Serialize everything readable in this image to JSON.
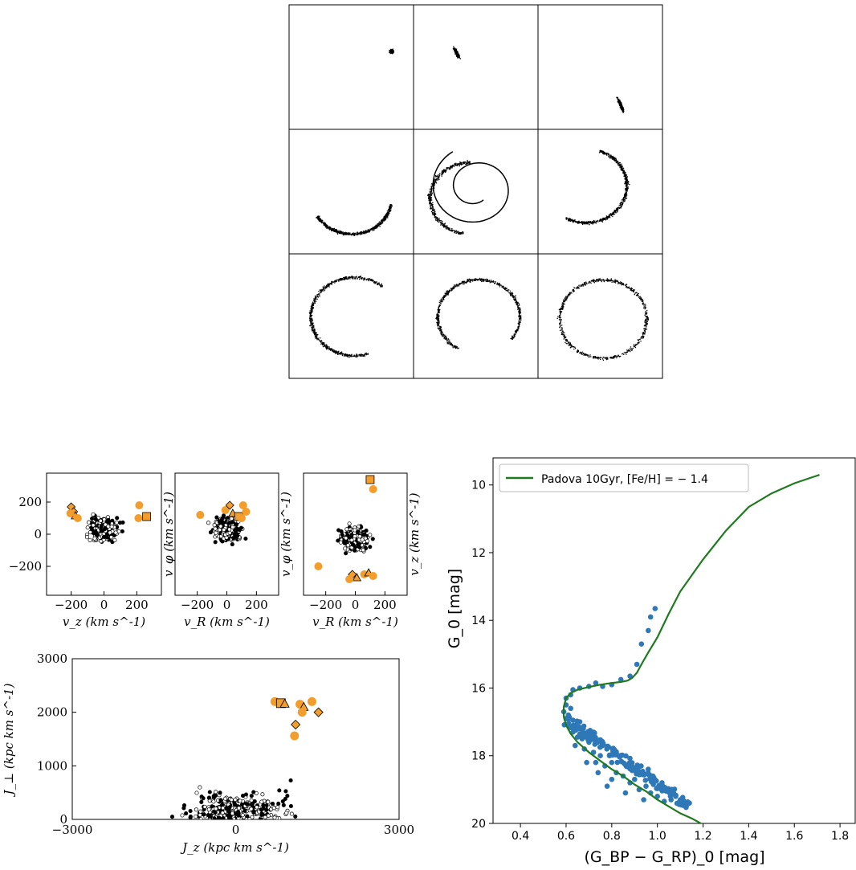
{
  "colors": {
    "orange": "#f29d2c",
    "blue": "#2e78b8",
    "green": "#1f7a1f",
    "ink": "#000000"
  },
  "chart_data": [
    {
      "type": "scatter",
      "panel": "simulation-grid",
      "rows": 3,
      "cols": 3,
      "snapshots": [
        {
          "shape": "blob",
          "cx": 0.82,
          "cy": 0.37,
          "spread": 0.03
        },
        {
          "shape": "streak",
          "cx": 0.34,
          "cy": 0.38,
          "spread": 0.08
        },
        {
          "shape": "streak",
          "cx": 0.66,
          "cy": 0.8,
          "spread": 0.1
        },
        {
          "shape": "arc",
          "cx": 0.5,
          "cy": 0.55,
          "r": 0.32,
          "a0": 150,
          "a1": 10
        },
        {
          "shape": "spiral",
          "cx": 0.45,
          "cy": 0.55,
          "r": 0.32
        },
        {
          "shape": "arc",
          "cx": 0.38,
          "cy": 0.45,
          "r": 0.33,
          "a0": -70,
          "a1": 120
        },
        {
          "shape": "arc",
          "cx": 0.52,
          "cy": 0.5,
          "r": 0.35,
          "a0": 70,
          "a1": 310
        },
        {
          "shape": "arc",
          "cx": 0.52,
          "cy": 0.5,
          "r": 0.33,
          "a0": 120,
          "a1": 400
        },
        {
          "shape": "ring",
          "cx": 0.52,
          "cy": 0.52,
          "r": 0.35
        }
      ]
    },
    {
      "type": "scatter",
      "panel": "velocity-1",
      "xlabel": "v_z (km s^-1)",
      "ylabel": "v_φ (km s^-1)",
      "xticks": [
        "−200",
        "0",
        "200"
      ],
      "yticks": [
        "200",
        "0",
        "−200"
      ],
      "xlim": [
        -350,
        350
      ],
      "ylim": [
        -380,
        380
      ],
      "highlight": [
        {
          "x": -200,
          "y": 170,
          "m": "diamond"
        },
        {
          "x": -185,
          "y": 140,
          "m": "diamond"
        },
        {
          "x": -175,
          "y": 115,
          "m": "triangle"
        },
        {
          "x": -160,
          "y": 100,
          "m": "circle"
        },
        {
          "x": -205,
          "y": 130,
          "m": "circle"
        },
        {
          "x": 215,
          "y": 180,
          "m": "circle"
        },
        {
          "x": 210,
          "y": 100,
          "m": "circle"
        },
        {
          "x": 260,
          "y": 110,
          "m": "square"
        }
      ]
    },
    {
      "type": "scatter",
      "panel": "velocity-2",
      "xlabel": "v_R (km s^-1)",
      "ylabel": "v_φ (km s^-1)",
      "xticks": [
        "−200",
        "0",
        "200"
      ],
      "xlim": [
        -350,
        350
      ],
      "ylim": [
        -380,
        380
      ],
      "highlight": [
        {
          "x": -180,
          "y": 120,
          "m": "circle"
        },
        {
          "x": -10,
          "y": 150,
          "m": "circle"
        },
        {
          "x": 20,
          "y": 180,
          "m": "diamond"
        },
        {
          "x": 40,
          "y": 130,
          "m": "triangle"
        },
        {
          "x": 80,
          "y": 110,
          "m": "square"
        },
        {
          "x": 110,
          "y": 180,
          "m": "circle"
        },
        {
          "x": 100,
          "y": 100,
          "m": "circle"
        },
        {
          "x": 130,
          "y": 140,
          "m": "circle"
        }
      ]
    },
    {
      "type": "scatter",
      "panel": "velocity-3",
      "xlabel": "v_R (km s^-1)",
      "ylabel": "v_z (km s^-1)",
      "xticks": [
        "−200",
        "0",
        "200"
      ],
      "xlim": [
        -350,
        350
      ],
      "ylim": [
        -380,
        380
      ],
      "highlight": [
        {
          "x": 100,
          "y": 340,
          "m": "square"
        },
        {
          "x": 120,
          "y": 280,
          "m": "circle"
        },
        {
          "x": -250,
          "y": -200,
          "m": "circle"
        },
        {
          "x": -20,
          "y": -250,
          "m": "diamond"
        },
        {
          "x": 10,
          "y": -270,
          "m": "triangle"
        },
        {
          "x": 60,
          "y": -250,
          "m": "circle"
        },
        {
          "x": 90,
          "y": -240,
          "m": "triangle"
        },
        {
          "x": 120,
          "y": -260,
          "m": "circle"
        },
        {
          "x": -40,
          "y": -280,
          "m": "circle"
        }
      ]
    },
    {
      "type": "scatter",
      "panel": "actions",
      "xlabel": "J_z (kpc km s^-1)",
      "ylabel": "J_⊥ (kpc km s^-1)",
      "xticks": [
        "−3000",
        "0",
        "3000"
      ],
      "yticks": [
        "3000",
        "2000",
        "1000",
        "0"
      ],
      "xlim": [
        -3000,
        3000
      ],
      "ylim": [
        0,
        3000
      ],
      "highlight": [
        {
          "x": 720,
          "y": 2200,
          "m": "circle"
        },
        {
          "x": 830,
          "y": 2170,
          "m": "square"
        },
        {
          "x": 900,
          "y": 2160,
          "m": "triangle"
        },
        {
          "x": 1180,
          "y": 2150,
          "m": "circle"
        },
        {
          "x": 1250,
          "y": 2100,
          "m": "triangle"
        },
        {
          "x": 1220,
          "y": 2000,
          "m": "circle"
        },
        {
          "x": 1400,
          "y": 2200,
          "m": "circle"
        },
        {
          "x": 1520,
          "y": 2000,
          "m": "diamond"
        },
        {
          "x": 1100,
          "y": 1770,
          "m": "diamond"
        },
        {
          "x": 1080,
          "y": 1560,
          "m": "circle"
        }
      ]
    },
    {
      "type": "line",
      "panel": "cmd",
      "xlabel": "(G_BP − G_RP)_0 [mag]",
      "ylabel": "G_0 [mag]",
      "legend": "Padova 10Gyr,  [Fe/H] = − 1.4",
      "legend_position": "top-left",
      "xlim": [
        0.28,
        1.87
      ],
      "ylim": [
        20,
        9.2
      ],
      "xticks": [
        "0.4",
        "0.6",
        "0.8",
        "1.0",
        "1.2",
        "1.4",
        "1.6",
        "1.8"
      ],
      "yticks": [
        "10",
        "12",
        "14",
        "16",
        "18",
        "20"
      ],
      "isochrone": {
        "x": [
          1.71,
          1.6,
          1.5,
          1.4,
          1.3,
          1.2,
          1.1,
          1.05,
          1.0,
          0.96,
          0.93,
          0.91,
          0.89,
          0.87,
          0.84,
          0.8,
          0.75,
          0.7,
          0.65,
          0.62,
          0.6,
          0.59,
          0.59,
          0.6,
          0.62,
          0.65,
          0.7,
          0.75,
          0.8,
          0.85,
          0.9,
          0.95,
          1.0,
          1.05,
          1.1,
          1.15,
          1.19
        ],
        "y": [
          9.7,
          9.95,
          10.25,
          10.65,
          11.35,
          12.2,
          13.15,
          13.8,
          14.5,
          14.95,
          15.3,
          15.55,
          15.7,
          15.78,
          15.82,
          15.85,
          15.9,
          15.97,
          16.05,
          16.15,
          16.3,
          16.55,
          16.85,
          17.1,
          17.35,
          17.6,
          17.9,
          18.15,
          18.4,
          18.6,
          18.85,
          19.05,
          19.3,
          19.5,
          19.7,
          19.85,
          20.0
        ]
      },
      "stars": [
        [
          0.99,
          13.65
        ],
        [
          0.97,
          13.9
        ],
        [
          0.96,
          14.3
        ],
        [
          0.93,
          14.7
        ],
        [
          0.91,
          15.3
        ],
        [
          0.88,
          15.65
        ],
        [
          0.84,
          15.75
        ],
        [
          0.8,
          15.9
        ],
        [
          0.76,
          15.95
        ],
        [
          0.73,
          15.85
        ],
        [
          0.7,
          15.95
        ],
        [
          0.66,
          16.0
        ],
        [
          0.63,
          16.05
        ],
        [
          0.62,
          16.2
        ],
        [
          0.6,
          16.3
        ],
        [
          0.6,
          16.5
        ],
        [
          0.59,
          16.7
        ],
        [
          0.6,
          16.9
        ],
        [
          0.62,
          16.6
        ],
        [
          0.61,
          17.1
        ],
        [
          0.63,
          17.3
        ],
        [
          0.65,
          17.2
        ],
        [
          0.67,
          17.5
        ],
        [
          0.7,
          17.6
        ],
        [
          0.68,
          17.8
        ],
        [
          0.72,
          17.9
        ],
        [
          0.75,
          18.0
        ],
        [
          0.73,
          18.2
        ],
        [
          0.77,
          18.3
        ],
        [
          0.8,
          18.2
        ],
        [
          0.82,
          18.5
        ],
        [
          0.85,
          18.6
        ],
        [
          0.8,
          18.7
        ],
        [
          0.88,
          18.8
        ],
        [
          0.9,
          18.7
        ],
        [
          0.92,
          19.0
        ],
        [
          0.95,
          18.9
        ],
        [
          0.97,
          19.1
        ],
        [
          1.0,
          19.2
        ],
        [
          0.94,
          19.3
        ],
        [
          1.03,
          19.35
        ],
        [
          1.06,
          19.3
        ],
        [
          1.1,
          19.4
        ],
        [
          1.14,
          19.4
        ],
        [
          0.86,
          19.1
        ],
        [
          0.78,
          18.9
        ],
        [
          0.98,
          18.6
        ],
        [
          1.02,
          18.8
        ],
        [
          0.66,
          17.0
        ],
        [
          0.64,
          17.7
        ],
        [
          0.71,
          17.3
        ],
        [
          0.76,
          17.7
        ],
        [
          0.83,
          18.0
        ],
        [
          0.87,
          18.3
        ],
        [
          0.9,
          18.4
        ],
        [
          0.93,
          18.5
        ],
        [
          0.96,
          18.4
        ],
        [
          1.04,
          19.0
        ],
        [
          1.08,
          19.2
        ],
        [
          0.74,
          18.5
        ],
        [
          0.69,
          18.2
        ],
        [
          0.79,
          18.0
        ],
        [
          0.61,
          16.8
        ],
        [
          0.63,
          16.95
        ],
        [
          0.65,
          17.45
        ]
      ]
    }
  ]
}
